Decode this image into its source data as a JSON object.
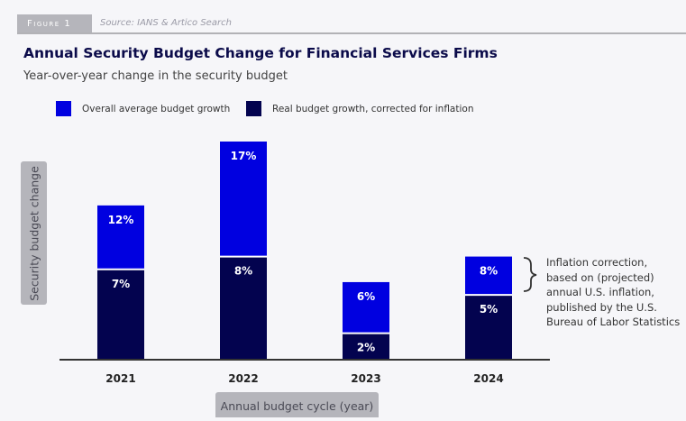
{
  "header": {
    "figure_label": "Figure 1",
    "source": "Source: IANS & Artico Search"
  },
  "chart_data": {
    "type": "bar",
    "stacking": "overlapped",
    "title": "Annual Security Budget Change for Financial Services Firms",
    "subtitle": "Year-over-year change in the security budget",
    "xlabel": "Annual budget cycle (year)",
    "ylabel": "Security budget change",
    "categories": [
      "2021",
      "2022",
      "2023",
      "2024"
    ],
    "series": [
      {
        "name": "Overall average budget growth",
        "color": "#0000e0",
        "values": [
          12,
          17,
          6,
          8
        ],
        "labels": [
          "12%",
          "17%",
          "6%",
          "8%"
        ]
      },
      {
        "name": "Real budget growth, corrected for inflation",
        "color": "#03034f",
        "values": [
          7,
          8,
          2,
          5
        ],
        "labels": [
          "7%",
          "8%",
          "2%",
          "5%"
        ]
      }
    ],
    "ylim": [
      0,
      17
    ],
    "grid": false,
    "legend": "top-left",
    "annotation": "Inflation correction, based on (projected) annual U.S. inflation, published by the U.S. Bureau of Labor Statistics"
  }
}
